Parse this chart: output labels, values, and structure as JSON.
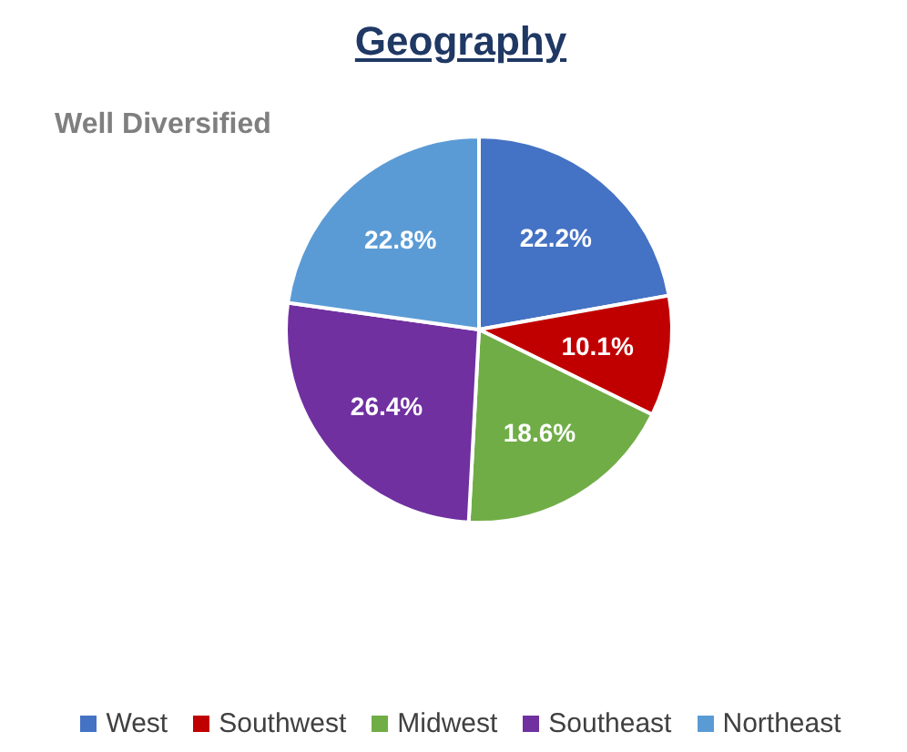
{
  "chart_data": {
    "type": "pie",
    "title": "Geography",
    "subtitle": "Well Diversified",
    "categories": [
      "West",
      "Southwest",
      "Midwest",
      "Southeast",
      "Northeast"
    ],
    "values": [
      22.2,
      10.1,
      18.6,
      26.4,
      22.8
    ],
    "colors": [
      "#4472c4",
      "#c00000",
      "#70ad47",
      "#7030a0",
      "#5b9bd5"
    ],
    "value_labels": [
      "22.2%",
      "10.1%",
      "18.6%",
      "26.4%",
      "22.8%"
    ],
    "legend": "bottom"
  }
}
